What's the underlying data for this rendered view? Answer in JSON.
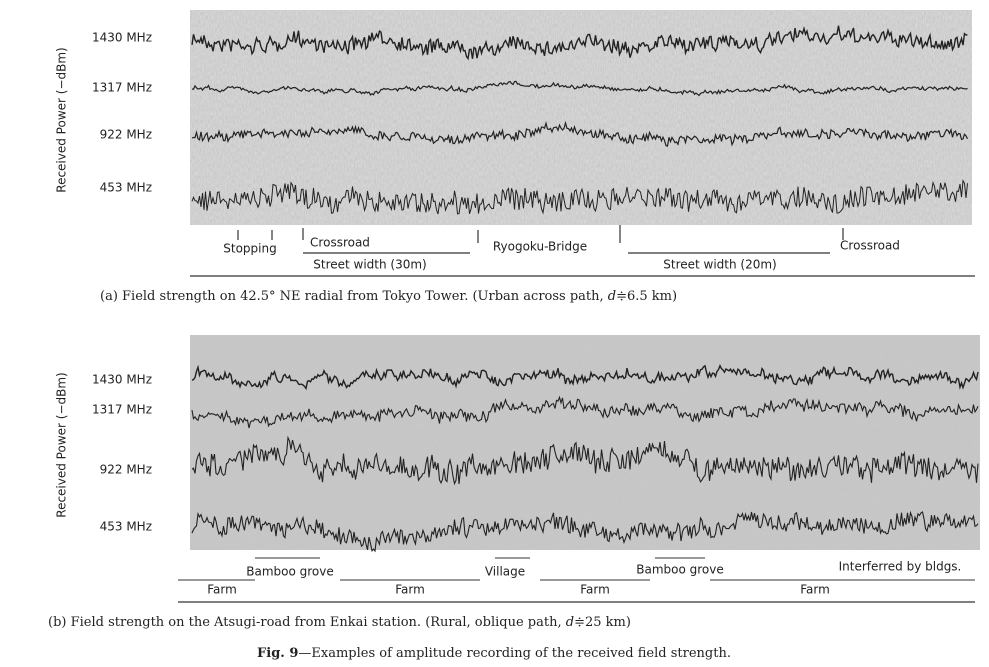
{
  "panels": [
    {
      "y_axis_label": "Received Power (−dBm)",
      "channels": [
        "1430 MHz",
        "1317 MHz",
        "922 MHz",
        "453 MHz"
      ],
      "annotations": [
        "Stopping",
        "Crossroad",
        "Ryogoku-Bridge",
        "Crossroad",
        "Street width (30m)",
        "Street width (20m)"
      ],
      "caption": {
        "prefix": "(a) Field strength on 42.5° NE radial from Tokyo Tower. (Urban across path, ",
        "variable": "d",
        "suffix": "≑6.5 km)"
      }
    },
    {
      "y_axis_label": "Received Power (−dBm)",
      "channels": [
        "1430 MHz",
        "1317 MHz",
        "922 MHz",
        "453 MHz"
      ],
      "annotations": [
        "Bamboo grove",
        "Village",
        "Bamboo grove",
        "Interferred by bldgs.",
        "Farm",
        "Farm",
        "Farm",
        "Farm"
      ],
      "caption": {
        "prefix": "(b) Field strength on the Atsugi-road from Enkai station. (Rural, oblique path, ",
        "variable": "d",
        "suffix": "≑25 km)"
      }
    }
  ],
  "figure": {
    "label": "Fig. 9",
    "caption": "—Examples of amplitude recording of the received field strength."
  }
}
